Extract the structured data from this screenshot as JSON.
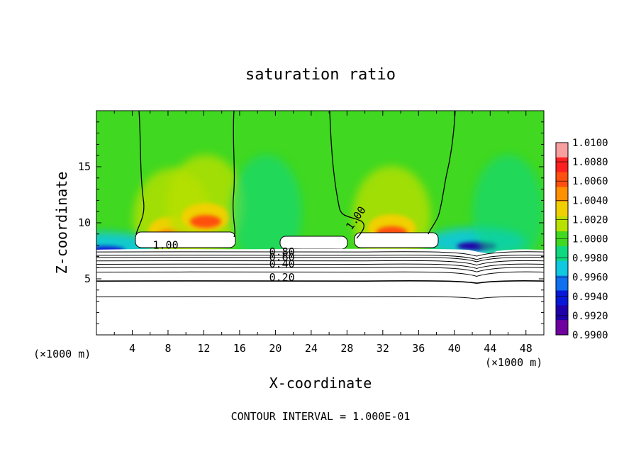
{
  "chart_data": {
    "type": "heatmap",
    "title": "saturation ratio",
    "xlabel": "X-coordinate",
    "ylabel": "Z-coordinate",
    "x_unit_left": "(×1000 m)",
    "x_unit_right": "(×1000 m)",
    "footer": "CONTOUR INTERVAL = 1.000E-01",
    "xlim": [
      0,
      50
    ],
    "ylim": [
      0,
      20
    ],
    "x_ticks": [
      {
        "value": 4,
        "label": "4"
      },
      {
        "value": 8,
        "label": "8"
      },
      {
        "value": 12,
        "label": "12"
      },
      {
        "value": 16,
        "label": "16"
      },
      {
        "value": 20,
        "label": "20"
      },
      {
        "value": 24,
        "label": "24"
      },
      {
        "value": 28,
        "label": "28"
      },
      {
        "value": 32,
        "label": "32"
      },
      {
        "value": 36,
        "label": "36"
      },
      {
        "value": 40,
        "label": "40"
      },
      {
        "value": 44,
        "label": "44"
      },
      {
        "value": 48,
        "label": "48"
      }
    ],
    "y_ticks": [
      {
        "value": 5,
        "label": "5"
      },
      {
        "value": 10,
        "label": "10"
      },
      {
        "value": 15,
        "label": "15"
      }
    ],
    "colorbar": {
      "min": 0.99,
      "max": 1.01,
      "labels": [
        "1.0100",
        "1.0080",
        "1.0060",
        "1.0040",
        "1.0020",
        "1.0000",
        "0.9980",
        "0.9960",
        "0.9940",
        "0.9920",
        "0.9900"
      ],
      "colors": [
        "#f8a0a0",
        "#ff2020",
        "#ff5010",
        "#ff9000",
        "#f0d000",
        "#b8e000",
        "#40d820",
        "#10d880",
        "#10c8e0",
        "#1070f0",
        "#0818d8",
        "#2000a8",
        "#7000a0"
      ]
    },
    "background_value": 1.0,
    "contour_labels": [
      {
        "text": "1.00",
        "x": 6.3,
        "y": 7.7
      },
      {
        "text": "0.80",
        "x": 19.3,
        "y": 7.1
      },
      {
        "text": "0.60",
        "x": 19.3,
        "y": 6.6
      },
      {
        "text": "0.40",
        "x": 19.3,
        "y": 6.0
      },
      {
        "text": "0.20",
        "x": 19.3,
        "y": 4.8
      },
      {
        "text": "1.00",
        "x": 28.5,
        "y": 9.3
      }
    ],
    "supersaturated_regions": [
      {
        "x": 8.5,
        "z": 9.8,
        "value": 1.005
      },
      {
        "x": 12.2,
        "z": 11.0,
        "value": 1.006
      },
      {
        "x": 33.0,
        "z": 10.0,
        "value": 1.007
      }
    ],
    "subsaturated_regions": [
      {
        "x": 42.5,
        "z": 8.3,
        "value": 0.991
      },
      {
        "x": 1.0,
        "z": 7.9,
        "value": 0.993
      }
    ]
  }
}
